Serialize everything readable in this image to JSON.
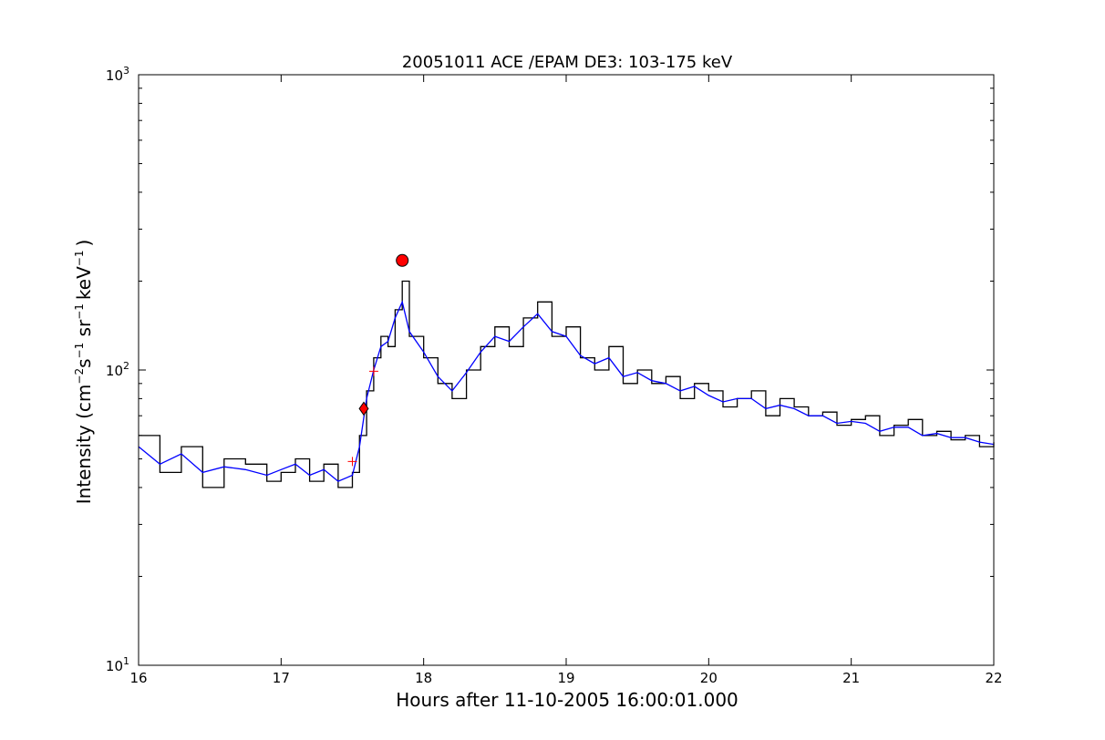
{
  "chart_data": {
    "type": "line",
    "title": "20051011 ACE /EPAM DE3: 103-175 keV",
    "xlabel": "Hours after 11-10-2005 16:00:01.000",
    "ylabel_main": "Intensity (cm",
    "ylabel_sup1": "−2",
    "ylabel_s": "s",
    "ylabel_sup2": "−1",
    "ylabel_sr": " sr",
    "ylabel_sup3": "−1",
    "ylabel_kev": "keV",
    "ylabel_sup4": "−1",
    "ylabel_close": ")",
    "xlim": [
      16,
      22
    ],
    "ylim": [
      10,
      1000
    ],
    "yscale": "log",
    "grid": false,
    "x_ticks": [
      16,
      17,
      18,
      19,
      20,
      21,
      22
    ],
    "x_tick_labels": [
      "16",
      "17",
      "18",
      "19",
      "20",
      "21",
      "22"
    ],
    "y_ticks": [
      10,
      100,
      1000
    ],
    "y_tick_labels": [
      {
        "base": "10",
        "exp": "1"
      },
      {
        "base": "10",
        "exp": "2"
      },
      {
        "base": "10",
        "exp": "3"
      }
    ],
    "series": [
      {
        "style": "steps",
        "color": "#000000",
        "x": [
          16.0,
          16.15,
          16.3,
          16.45,
          16.6,
          16.75,
          16.9,
          17.0,
          17.1,
          17.2,
          17.3,
          17.4,
          17.5,
          17.55,
          17.6,
          17.65,
          17.7,
          17.75,
          17.8,
          17.85,
          17.9,
          18.0,
          18.1,
          18.2,
          18.3,
          18.4,
          18.5,
          18.6,
          18.7,
          18.8,
          18.9,
          19.0,
          19.1,
          19.2,
          19.3,
          19.4,
          19.5,
          19.6,
          19.7,
          19.8,
          19.9,
          20.0,
          20.1,
          20.2,
          20.3,
          20.4,
          20.5,
          20.6,
          20.7,
          20.8,
          20.9,
          21.0,
          21.1,
          21.2,
          21.3,
          21.4,
          21.5,
          21.6,
          21.7,
          21.8,
          21.9,
          22.0
        ],
        "y": [
          60,
          45,
          55,
          40,
          50,
          48,
          42,
          45,
          50,
          42,
          48,
          40,
          45,
          60,
          85,
          110,
          130,
          120,
          160,
          200,
          130,
          110,
          90,
          80,
          100,
          120,
          140,
          120,
          150,
          170,
          130,
          140,
          110,
          100,
          120,
          90,
          100,
          90,
          95,
          80,
          90,
          85,
          75,
          80,
          85,
          70,
          80,
          75,
          70,
          72,
          65,
          68,
          70,
          60,
          65,
          68,
          60,
          62,
          58,
          60,
          55,
          57
        ]
      },
      {
        "style": "line",
        "color": "#0000ff",
        "x": [
          16.0,
          16.15,
          16.3,
          16.45,
          16.6,
          16.75,
          16.9,
          17.0,
          17.1,
          17.2,
          17.3,
          17.4,
          17.5,
          17.55,
          17.6,
          17.65,
          17.7,
          17.75,
          17.8,
          17.85,
          17.9,
          18.0,
          18.1,
          18.2,
          18.3,
          18.4,
          18.5,
          18.6,
          18.7,
          18.8,
          18.9,
          19.0,
          19.1,
          19.2,
          19.3,
          19.4,
          19.5,
          19.6,
          19.7,
          19.8,
          19.9,
          20.0,
          20.1,
          20.2,
          20.3,
          20.4,
          20.5,
          20.6,
          20.7,
          20.8,
          20.9,
          21.0,
          21.1,
          21.2,
          21.3,
          21.4,
          21.5,
          21.6,
          21.7,
          21.8,
          21.9,
          22.0
        ],
        "y": [
          55,
          48,
          52,
          45,
          47,
          46,
          44,
          46,
          48,
          44,
          46,
          42,
          44,
          55,
          80,
          100,
          120,
          125,
          150,
          170,
          135,
          115,
          95,
          85,
          98,
          115,
          130,
          125,
          140,
          155,
          135,
          130,
          112,
          105,
          110,
          95,
          98,
          92,
          90,
          85,
          88,
          82,
          78,
          80,
          80,
          74,
          76,
          74,
          70,
          70,
          66,
          67,
          66,
          62,
          64,
          64,
          60,
          61,
          59,
          59,
          57,
          56
        ]
      }
    ],
    "markers": [
      {
        "shape": "circle",
        "x": 17.85,
        "y": 235,
        "color": "#ff0000"
      },
      {
        "shape": "diamond",
        "x": 17.58,
        "y": 74,
        "color": "#ff0000"
      },
      {
        "shape": "plus",
        "x": 17.5,
        "y": 49,
        "color": "#ff0000"
      },
      {
        "shape": "plus",
        "x": 17.65,
        "y": 99,
        "color": "#ff0000"
      }
    ]
  }
}
